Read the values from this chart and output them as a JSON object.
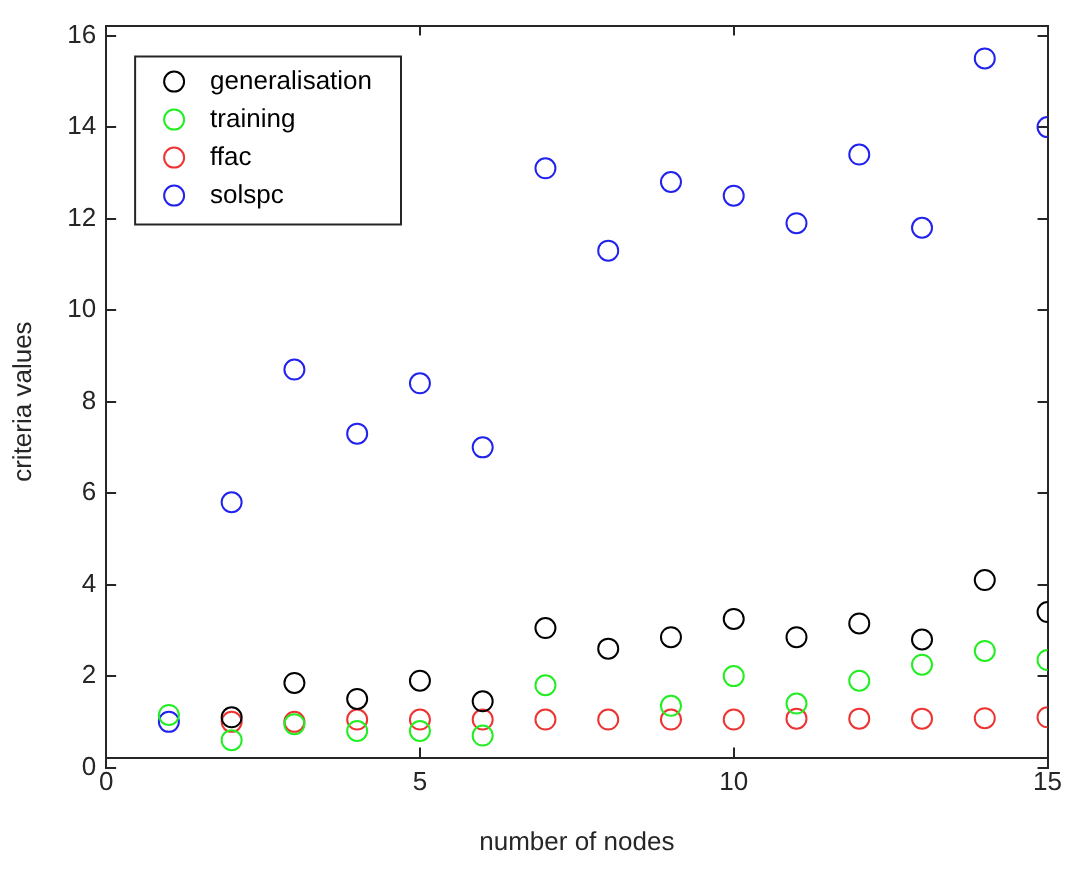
{
  "chart_data": {
    "type": "scatter",
    "xlabel": "number of nodes",
    "ylabel": "criteria values",
    "x": [
      1,
      2,
      3,
      4,
      5,
      6,
      7,
      8,
      9,
      10,
      11,
      12,
      13,
      14,
      15
    ],
    "xlim": [
      0,
      15
    ],
    "xticks": [
      0,
      5,
      10,
      15
    ],
    "ylim": [
      0,
      16
    ],
    "yticks": [
      0,
      2,
      4,
      6,
      8,
      10,
      12,
      14,
      16
    ],
    "grid": false,
    "legend": "top left",
    "marker": "circle",
    "series": [
      {
        "name": "generalisation",
        "color": "#000000",
        "values": [
          null,
          1.1,
          1.85,
          1.5,
          1.9,
          1.45,
          3.05,
          2.6,
          2.85,
          3.25,
          2.85,
          3.15,
          2.8,
          4.1,
          3.4
        ]
      },
      {
        "name": "training",
        "color": "#22ee22",
        "values": [
          1.15,
          0.6,
          0.95,
          0.8,
          0.8,
          0.7,
          1.8,
          null,
          1.35,
          2.0,
          1.4,
          1.9,
          2.25,
          2.55,
          2.35
        ]
      },
      {
        "name": "ffac",
        "color": "#ee3333",
        "values": [
          null,
          1.0,
          1.0,
          1.05,
          1.05,
          1.05,
          1.05,
          1.05,
          1.05,
          1.05,
          1.07,
          1.07,
          1.07,
          1.08,
          1.1
        ]
      },
      {
        "name": "solspc",
        "color": "#2222ee",
        "values": [
          1.0,
          5.8,
          8.7,
          7.3,
          8.4,
          7.0,
          13.1,
          11.3,
          12.8,
          12.5,
          11.9,
          13.4,
          11.8,
          15.5,
          14.0
        ]
      }
    ]
  }
}
